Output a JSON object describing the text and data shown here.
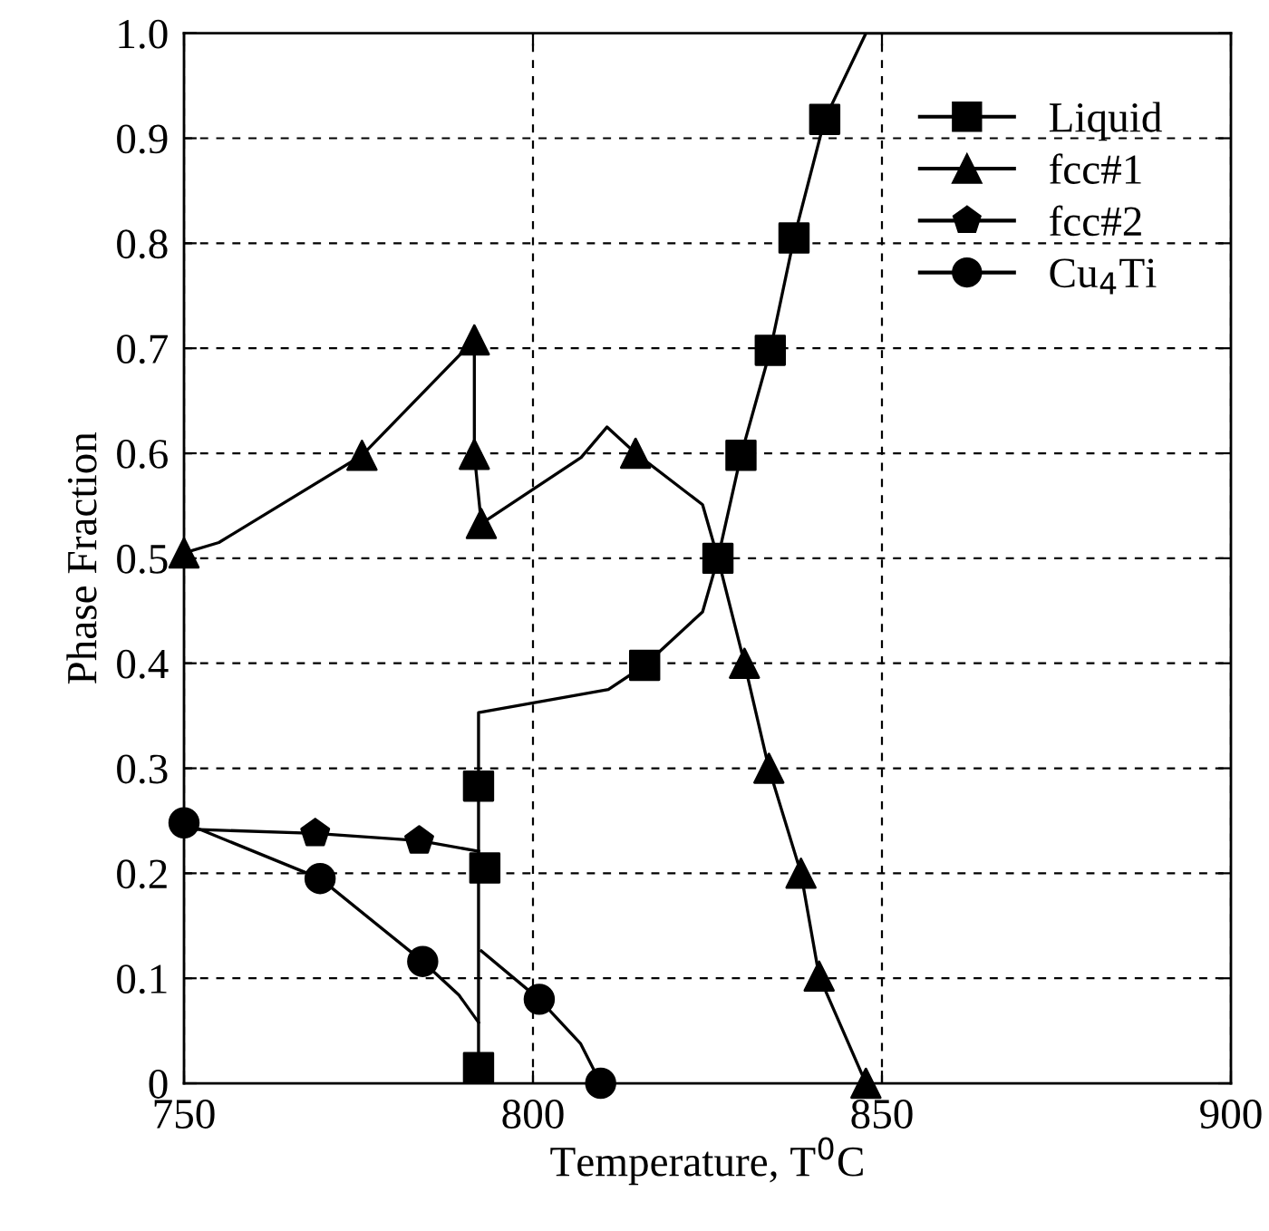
{
  "chart_data": {
    "type": "line",
    "xlabel": "Temperature, T$^{0}$C",
    "ylabel": "Phase Fraction",
    "xlim": [
      750,
      900
    ],
    "xticks": [
      750,
      800,
      850,
      900
    ],
    "ylim": [
      0,
      1.0
    ],
    "yticks": [
      0,
      0.1,
      0.2,
      0.3,
      0.4,
      0.5,
      0.6,
      0.7,
      0.8,
      0.9,
      {
        "value": 1.0,
        "label": "1.0"
      }
    ],
    "grid": true,
    "legend": "top right",
    "series": [
      {
        "color": "#000000",
        "marker": "none",
        "x": [
          792.2,
          792.2,
          810.8,
          816,
          824.3,
          826.5,
          829.8,
          834,
          837.4,
          841.8,
          847.7,
          900
        ],
        "values": [
          0,
          0.353,
          0.375,
          0.398,
          0.449,
          0.5,
          0.598,
          0.698,
          0.805,
          0.918,
          1.0,
          1.0
        ]
      },
      {
        "color": "#000000",
        "marker": "none",
        "x": [
          750,
          755,
          775.5,
          791.6,
          791.6,
          792.6,
          806.9,
          810.6,
          814.7,
          824.3,
          826.5,
          830.3,
          833.8,
          838.4,
          841.0,
          847.7
        ],
        "values": [
          0.505,
          0.515,
          0.598,
          0.708,
          0.599,
          0.533,
          0.596,
          0.625,
          0.6,
          0.551,
          0.5,
          0.4,
          0.3,
          0.2,
          0.102,
          0
        ]
      },
      {
        "color": "#000000",
        "marker": "none",
        "x": [
          750.5,
          768.8,
          783.7,
          792.2
        ],
        "values": [
          0.242,
          0.238,
          0.231,
          0.221
        ]
      },
      {
        "color": "#000000",
        "marker": "none",
        "x": [
          750,
          769.5,
          784.2,
          789.4,
          792.2,
          792.4,
          792.6,
          800.9,
          806.8,
          809.7
        ],
        "values": [
          0.248,
          0.195,
          0.116,
          0.084,
          0.058,
          null,
          0.126,
          0.08,
          0.038,
          0
        ]
      },
      {
        "type": "scatter",
        "name": "Liquid",
        "color": "#000000",
        "marker": "square",
        "x": [
          792.2,
          792.2,
          793.1,
          816,
          826.5,
          829.8,
          834,
          837.4,
          841.8
        ],
        "values": [
          0.015,
          0.283,
          0.205,
          0.398,
          0.5,
          0.598,
          0.698,
          0.805,
          0.918
        ]
      },
      {
        "type": "scatter",
        "name": "fcc#1",
        "color": "#000000",
        "marker": "triangle",
        "x": [
          750,
          775.5,
          791.6,
          791.6,
          792.6,
          814.7,
          830.3,
          833.8,
          838.4,
          841.0,
          847.7
        ],
        "values": [
          0.505,
          0.598,
          0.708,
          0.599,
          0.533,
          0.6,
          0.4,
          0.3,
          0.2,
          0.102,
          0
        ]
      },
      {
        "type": "scatter",
        "name": "fcc#2",
        "color": "#000000",
        "x": [
          768.8,
          783.7
        ],
        "values": [
          0.238,
          0.231
        ]
      },
      {
        "type": "scatter",
        "name": "Cu$_{4}$Ti",
        "color": "#000000",
        "marker": "circle",
        "x": [
          750,
          769.5,
          784.2,
          800.9,
          809.7
        ],
        "values": [
          0.248,
          0.195,
          0.116,
          0.08,
          0
        ]
      }
    ]
  }
}
